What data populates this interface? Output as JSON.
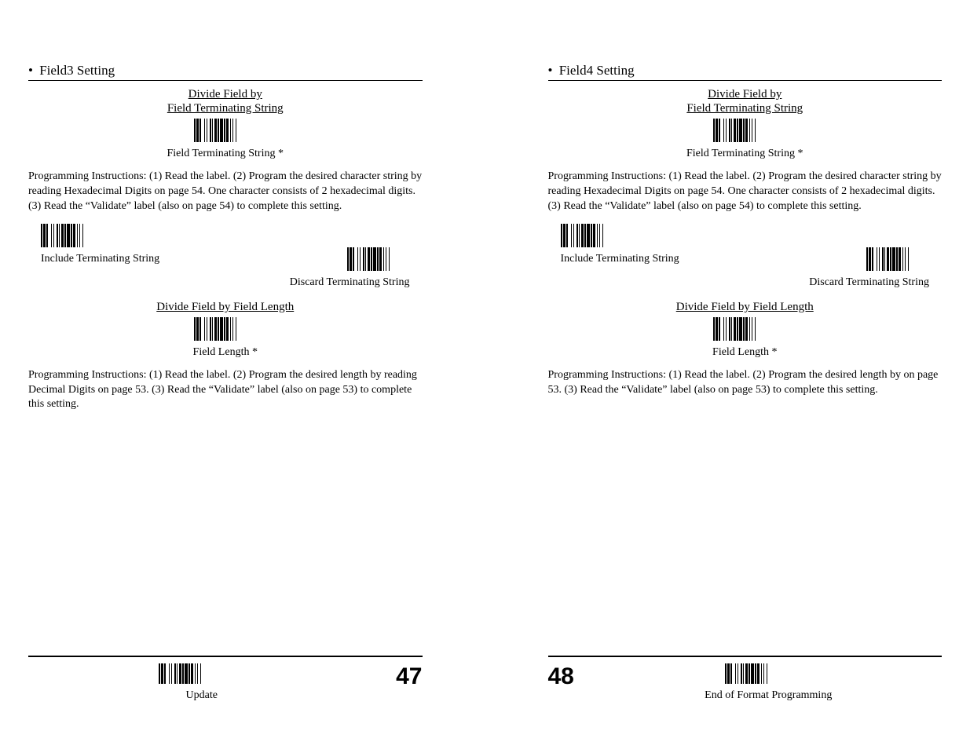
{
  "barcode": {
    "height_main": 30,
    "width_main": 80,
    "height_footer": 26,
    "width_footer": 110,
    "color": "#000000"
  },
  "left": {
    "title_prefix": "• ",
    "title": "Field3 Setting",
    "sub1_line1": "Divide Field by",
    "sub1_line2": "Field Terminating String",
    "bar1_label": "Field Terminating String *",
    "instr1": "Programming Instructions: (1) Read the label. (2) Program the desired character string by reading Hexadecimal Digits on page 54. One character consists of 2 hexadecimal digits. (3) Read the “Validate” label (also on page 54) to complete this setting.",
    "bar_include_label": "Include Terminating String",
    "bar_discard_label": "Discard Terminating String",
    "sub2": "Divide Field by Field Length",
    "bar2_label": "Field Length *",
    "instr2": "Programming Instructions: (1) Read the label. (2) Program the desired length by reading Decimal Digits on page 53. (3) Read the “Validate” label (also on page 53) to complete this setting.",
    "footer_label": "Update",
    "page_number": "47"
  },
  "right": {
    "title_prefix": "• ",
    "title": "Field4 Setting",
    "sub1_line1": "Divide Field by",
    "sub1_line2": "Field Terminating String",
    "bar1_label": "Field Terminating String *",
    "instr1": "Programming Instructions: (1) Read the label. (2) Program the desired character string by reading Hexadecimal Digits on page 54. One character consists of 2 hexadecimal digits. (3) Read the “Validate” label (also on page 54) to complete this setting.",
    "bar_include_label": "Include Terminating String",
    "bar_discard_label": "Discard Terminating String",
    "sub2": "Divide Field by Field Length",
    "bar2_label": "Field Length *",
    "instr2": "Programming Instructions: (1) Read the label. (2) Program the desired length by on page 53. (3) Read the “Validate” label (also on page 53) to complete this setting.",
    "footer_label": "End of Format Programming",
    "page_number": "48"
  }
}
